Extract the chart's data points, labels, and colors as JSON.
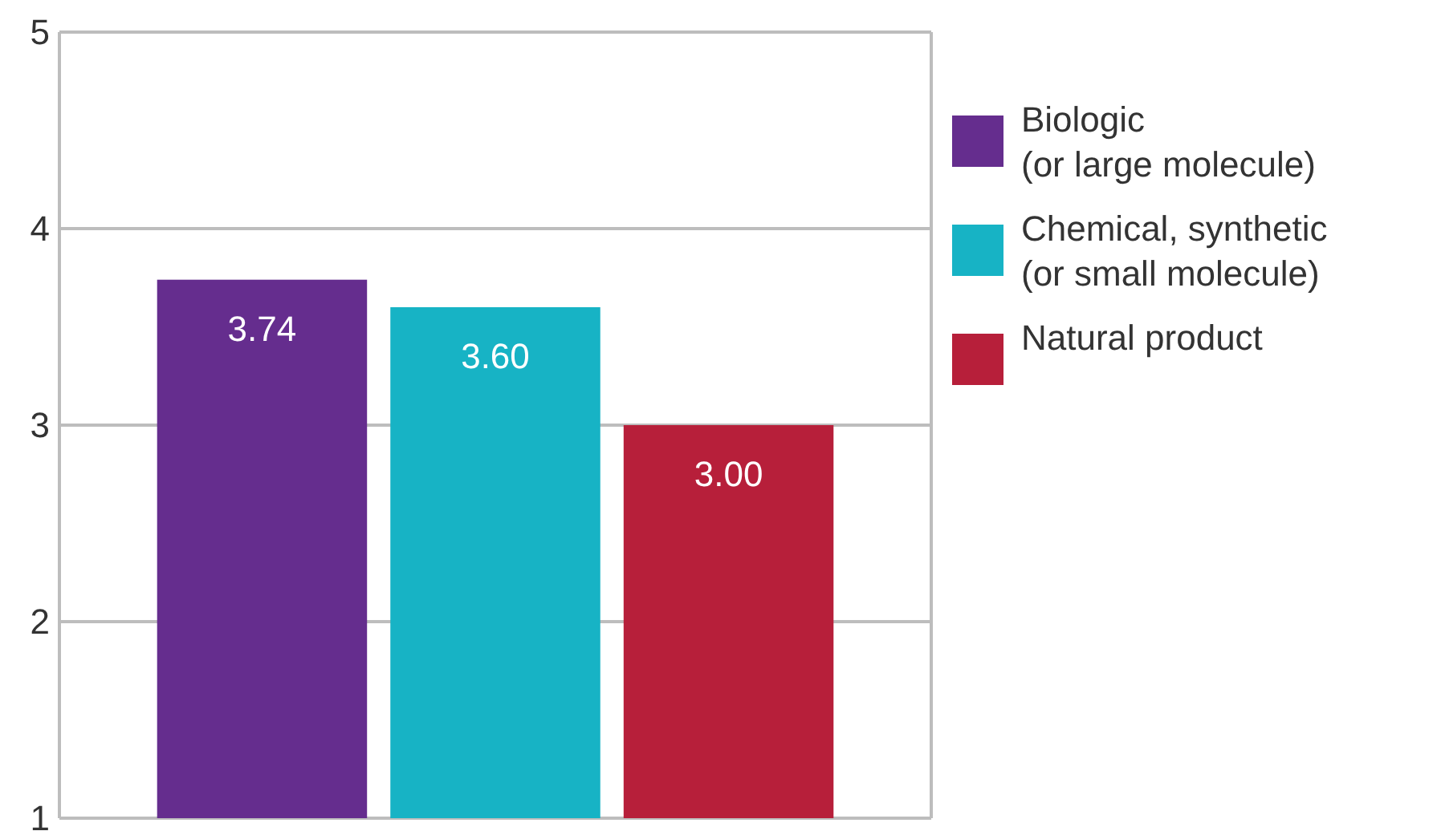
{
  "chart_data": {
    "type": "bar",
    "categories": [
      null
    ],
    "series": [
      {
        "name": "Biologic (or large molecule)",
        "color": "#652d8e",
        "values": [
          3.74
        ],
        "value_labels": [
          "3.74"
        ]
      },
      {
        "name": "Chemical, synthetic (or small molecule)",
        "color": "#17b3c5",
        "values": [
          3.6
        ],
        "value_labels": [
          "3.60"
        ]
      },
      {
        "name": "Natural product",
        "color": "#b71f3a",
        "values": [
          3.0
        ],
        "value_labels": [
          "3.00"
        ]
      }
    ],
    "ylim": [
      1,
      5
    ],
    "yticks": [
      1,
      2,
      3,
      4,
      5
    ],
    "grid": "y",
    "legend": "right"
  }
}
